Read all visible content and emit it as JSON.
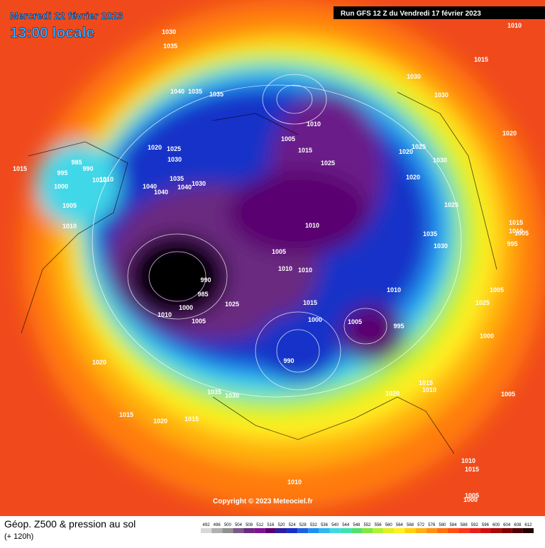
{
  "header": {
    "date": "Mercredi 22 février 2023",
    "time": "13:00 locale",
    "run": "Run GFS 12 Z du Vendredi 17 février 2023"
  },
  "copyright": "Copyright © 2023 Meteociel.fr",
  "footer": {
    "title": "Géop. Z500 & pression au sol",
    "lead": "(+ 120h)"
  },
  "scale": {
    "values": [
      492,
      496,
      500,
      504,
      508,
      512,
      516,
      520,
      524,
      528,
      532,
      536,
      540,
      544,
      548,
      552,
      556,
      560,
      564,
      568,
      572,
      576,
      580,
      584,
      588,
      592,
      596,
      600,
      604,
      608,
      612
    ],
    "colors": [
      "#d8d8d8",
      "#b0b0b0",
      "#909090",
      "#7a5a8a",
      "#6a2a80",
      "#80109a",
      "#5a0070",
      "#2a20a0",
      "#1830c8",
      "#2060e0",
      "#2090f0",
      "#30b8f0",
      "#40d8e8",
      "#40e0b0",
      "#50e070",
      "#80e840",
      "#b0f030",
      "#e0f020",
      "#fff020",
      "#ffd010",
      "#ffb010",
      "#ff9010",
      "#ff7010",
      "#ff5010",
      "#f83818",
      "#e82018",
      "#d01010",
      "#a80808",
      "#800000",
      "#500000",
      "#200000"
    ]
  },
  "isobars": [
    "1030",
    "1035",
    "1040",
    "1035",
    "1035",
    "1010",
    "1015",
    "1030",
    "1030",
    "1020",
    "1025",
    "1030",
    "1005",
    "1010",
    "1010",
    "995",
    "985",
    "990",
    "1000",
    "1005",
    "1010",
    "1015",
    "1020",
    "1025",
    "1030",
    "1040",
    "1040",
    "1040",
    "1010",
    "1015",
    "1025",
    "1035",
    "1030",
    "1035",
    "1030",
    "995",
    "1010",
    "1005",
    "1010",
    "990",
    "985",
    "1000",
    "1005",
    "1010",
    "1025",
    "1015",
    "1000",
    "1005",
    "995",
    "990",
    "1010",
    "1020",
    "1015",
    "1010",
    "1035",
    "1030",
    "1020",
    "1020",
    "1025",
    "1020",
    "1015",
    "1020",
    "1015",
    "1010",
    "1005",
    "1000",
    "1005",
    "1010",
    "1015",
    "1005",
    "1000",
    "1025",
    "1010",
    "1015",
    "1005",
    "1010"
  ]
}
